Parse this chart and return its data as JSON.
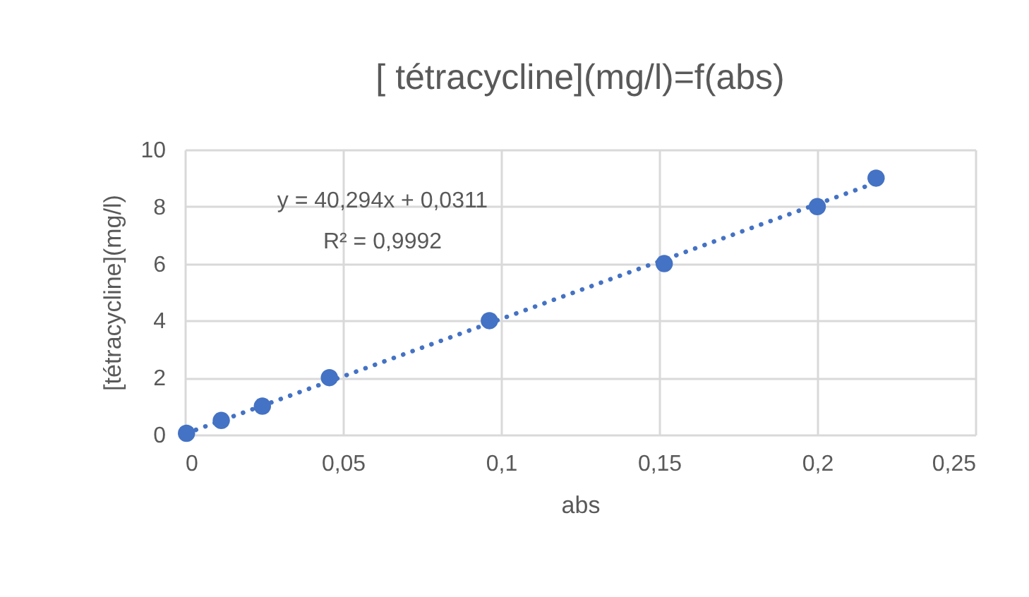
{
  "chart_data": {
    "type": "scatter",
    "title": "[ tétracycline](mg/l)=f(abs)",
    "xlabel": "abs",
    "ylabel": "[tétracycline](mg/l)",
    "annotations": [
      "y = 40,294x + 0,0311",
      "R² = 0,9992"
    ],
    "series": [
      {
        "color": "#4472c4",
        "marker": "circle",
        "x": [
          0.0005,
          0.0115,
          0.0245,
          0.0457,
          0.0963,
          0.1516,
          0.2,
          0.2186
        ],
        "values": [
          0.05,
          0.5,
          1,
          2,
          4,
          6,
          8,
          9
        ]
      },
      {
        "type": "line",
        "color": "#4472c4",
        "line_style": "dotted",
        "x": [
          0.0005,
          0.2186
        ],
        "values": [
          0.05,
          8.84
        ]
      }
    ],
    "xlim": [
      0,
      0.25
    ],
    "xticks": [
      0,
      {
        "value": 0.05,
        "label": "0,05"
      },
      {
        "value": 0.1,
        "label": "0,1"
      },
      {
        "value": 0.15,
        "label": "0,15"
      },
      {
        "value": 0.2,
        "label": "0,2"
      },
      {
        "value": 0.25,
        "label": "0,25"
      }
    ],
    "ylim": [
      0,
      10
    ],
    "yticks": [
      0,
      2,
      4,
      6,
      8,
      10
    ],
    "grid": true
  }
}
